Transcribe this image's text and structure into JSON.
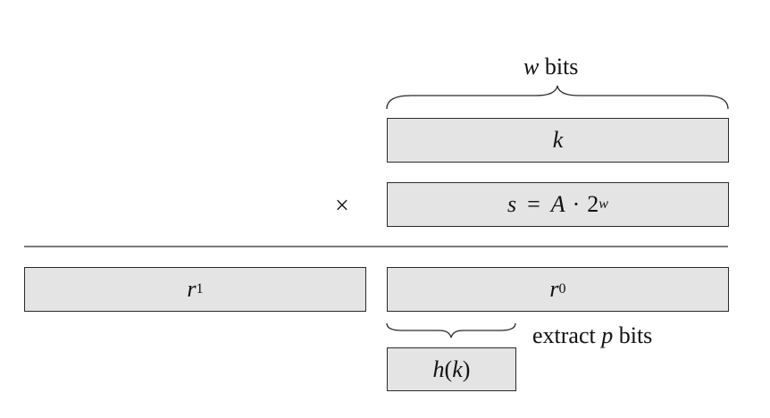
{
  "top_label": {
    "var": "w",
    "text": " bits"
  },
  "operator": "×",
  "k_box": {
    "var": "k"
  },
  "s_box": {
    "lhs": "s",
    "eq": "=",
    "A": "A",
    "dot": "·",
    "base": "2",
    "exp": "w"
  },
  "r1_box": {
    "var": "r",
    "sub": "1"
  },
  "r0_box": {
    "var": "r",
    "sub": "0"
  },
  "extract_label": {
    "pre": "extract ",
    "var": "p",
    "post": " bits"
  },
  "h_box": {
    "fn": "h",
    "open": "(",
    "arg": "k",
    "close": ")"
  },
  "colors": {
    "box_fill": "#e4e4e4",
    "stroke": "#2a2a2a"
  }
}
